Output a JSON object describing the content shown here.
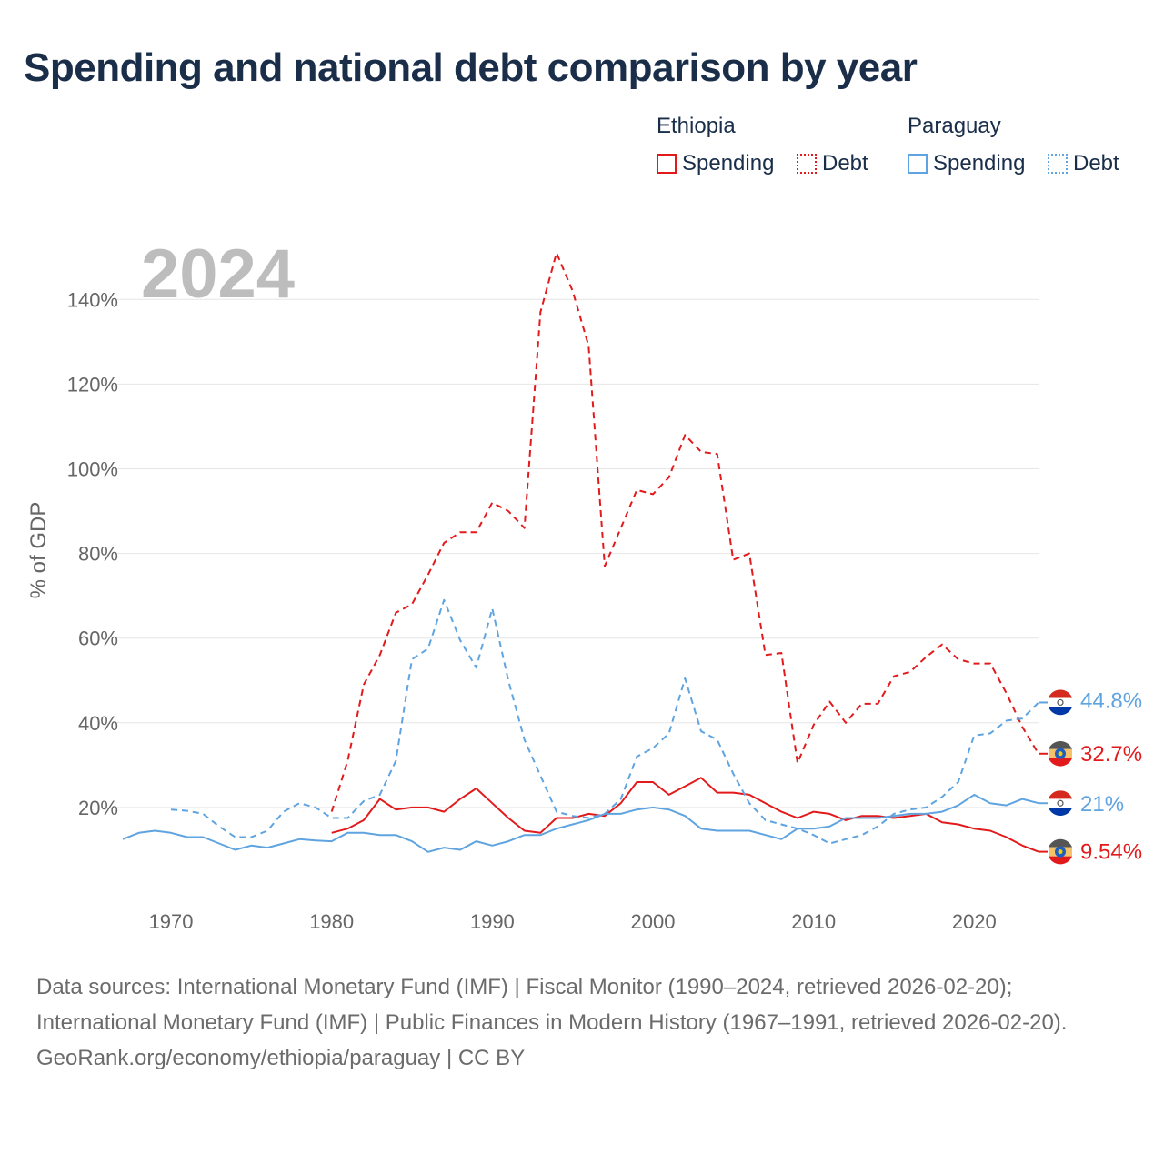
{
  "title": "Spending and national debt comparison by year",
  "legend": {
    "groups": [
      {
        "country": "Ethiopia",
        "items": [
          {
            "label": "Spending",
            "style": "solid"
          },
          {
            "label": "Debt",
            "style": "dotted"
          }
        ],
        "color": "#e31a1c"
      },
      {
        "country": "Paraguay",
        "items": [
          {
            "label": "Spending",
            "style": "solid"
          },
          {
            "label": "Debt",
            "style": "dotted"
          }
        ],
        "color": "#5fa4e0"
      }
    ]
  },
  "year_label": "2024",
  "footer": {
    "sources": "Data sources: International Monetary Fund (IMF) | Fiscal Monitor (1990–2024, retrieved 2026-02-20); International Monetary Fund (IMF) | Public Finances in Modern History (1967–1991, retrieved 2026-02-20).",
    "attribution": "GeoRank.org/economy/ethiopia/paraguay | CC BY"
  },
  "chart_data": {
    "type": "line",
    "title": "Spending and national debt comparison by year",
    "xlabel": "",
    "ylabel": "% of GDP",
    "xlim": [
      1967,
      2024
    ],
    "ylim": [
      0,
      150
    ],
    "x_ticks": [
      1970,
      1980,
      1990,
      2000,
      2010,
      2020
    ],
    "x_tick_labels": [
      "1970",
      "1980",
      "1990",
      "2000",
      "2010",
      "2020"
    ],
    "y_ticks": [
      20,
      40,
      60,
      80,
      100,
      120,
      140
    ],
    "y_tick_labels": [
      "20%",
      "40%",
      "60%",
      "80%",
      "100%",
      "120%",
      "140%"
    ],
    "grid": true,
    "series": [
      {
        "name": "Ethiopia Spending",
        "country": "Ethiopia",
        "style": "solid",
        "color": "#e31a1c",
        "end_label": "9.54%",
        "x": [
          1980,
          1981,
          1982,
          1983,
          1984,
          1985,
          1986,
          1987,
          1988,
          1989,
          1990,
          1991,
          1992,
          1993,
          1994,
          1995,
          1996,
          1997,
          1998,
          1999,
          2000,
          2001,
          2002,
          2003,
          2004,
          2005,
          2006,
          2007,
          2008,
          2009,
          2010,
          2011,
          2012,
          2013,
          2014,
          2015,
          2016,
          2017,
          2018,
          2019,
          2020,
          2021,
          2022,
          2023,
          2024
        ],
        "values": [
          14,
          15,
          17,
          22,
          19.5,
          20,
          20,
          19,
          22,
          24.5,
          21,
          17.5,
          14.5,
          14,
          17.5,
          17.5,
          18.5,
          18,
          21,
          26,
          26,
          23,
          25,
          27,
          23.5,
          23.5,
          23,
          21,
          19,
          17.5,
          19,
          18.5,
          17,
          18,
          18,
          17.5,
          18,
          18.5,
          16.5,
          16,
          15,
          14.5,
          13,
          11,
          9.54
        ]
      },
      {
        "name": "Ethiopia Debt",
        "country": "Ethiopia",
        "style": "dotted",
        "color": "#e31a1c",
        "end_label": "32.7%",
        "x": [
          1980,
          1981,
          1982,
          1983,
          1984,
          1985,
          1986,
          1987,
          1988,
          1989,
          1990,
          1991,
          1992,
          1993,
          1994,
          1995,
          1996,
          1997,
          1998,
          1999,
          2000,
          2001,
          2002,
          2003,
          2004,
          2005,
          2006,
          2007,
          2008,
          2009,
          2010,
          2011,
          2012,
          2013,
          2014,
          2015,
          2016,
          2017,
          2018,
          2019,
          2020,
          2021,
          2022,
          2023,
          2024
        ],
        "values": [
          19,
          31,
          49,
          56,
          66,
          68,
          75,
          82.5,
          85,
          85,
          92,
          90,
          86,
          137,
          151,
          142,
          129,
          77,
          86,
          95,
          94,
          98,
          108,
          104,
          103.5,
          78.5,
          80,
          56,
          56.5,
          30.5,
          39.5,
          45,
          40,
          44.5,
          44.5,
          51,
          52,
          55.5,
          58.5,
          55,
          54,
          54,
          47,
          39,
          32.7
        ]
      },
      {
        "name": "Paraguay Spending",
        "country": "Paraguay",
        "style": "solid",
        "color": "#5fa4e0",
        "end_label": "21%",
        "x": [
          1967,
          1968,
          1969,
          1970,
          1971,
          1972,
          1973,
          1974,
          1975,
          1976,
          1977,
          1978,
          1979,
          1980,
          1981,
          1982,
          1983,
          1984,
          1985,
          1986,
          1987,
          1988,
          1989,
          1990,
          1991,
          1992,
          1993,
          1994,
          1995,
          1996,
          1997,
          1998,
          1999,
          2000,
          2001,
          2002,
          2003,
          2004,
          2005,
          2006,
          2007,
          2008,
          2009,
          2010,
          2011,
          2012,
          2013,
          2014,
          2015,
          2016,
          2017,
          2018,
          2019,
          2020,
          2021,
          2022,
          2023,
          2024
        ],
        "values": [
          12.5,
          14,
          14.5,
          14,
          13,
          13,
          11.5,
          10,
          11,
          10.5,
          11.5,
          12.5,
          12.2,
          12,
          14,
          14,
          13.5,
          13.5,
          12,
          9.5,
          10.5,
          10,
          12,
          11,
          12,
          13.5,
          13.5,
          15,
          16,
          17,
          18.5,
          18.5,
          19.5,
          20,
          19.5,
          18,
          15,
          14.5,
          14.5,
          14.5,
          13.5,
          12.5,
          15,
          15,
          15.5,
          17.5,
          17.5,
          17.5,
          18,
          18.5,
          18.5,
          19,
          20.5,
          23,
          21,
          20.5,
          22,
          21
        ]
      },
      {
        "name": "Paraguay Debt",
        "country": "Paraguay",
        "style": "dotted",
        "color": "#5fa4e0",
        "end_label": "44.8%",
        "x": [
          1970,
          1971,
          1972,
          1973,
          1974,
          1975,
          1976,
          1977,
          1978,
          1979,
          1980,
          1981,
          1982,
          1983,
          1984,
          1985,
          1986,
          1987,
          1988,
          1989,
          1990,
          1991,
          1992,
          1993,
          1994,
          1995,
          1996,
          1997,
          1998,
          1999,
          2000,
          2001,
          2002,
          2003,
          2004,
          2005,
          2006,
          2007,
          2008,
          2009,
          2010,
          2011,
          2012,
          2013,
          2014,
          2015,
          2016,
          2017,
          2018,
          2019,
          2020,
          2021,
          2022,
          2023,
          2024
        ],
        "values": [
          19.5,
          19.2,
          18.5,
          15.5,
          13,
          13,
          14.5,
          19,
          21,
          20,
          17.5,
          17.5,
          21.5,
          23,
          31,
          55,
          57.5,
          69,
          59.5,
          53,
          67,
          50,
          36,
          27.5,
          19,
          18,
          17.5,
          18.5,
          22,
          32,
          34,
          37.5,
          50.5,
          38,
          36,
          28,
          21,
          17,
          16,
          15,
          13.5,
          11.5,
          12.5,
          13.5,
          15.5,
          18.5,
          19.5,
          20,
          22.5,
          26,
          37,
          37.5,
          40.5,
          41,
          44.8
        ]
      }
    ]
  }
}
